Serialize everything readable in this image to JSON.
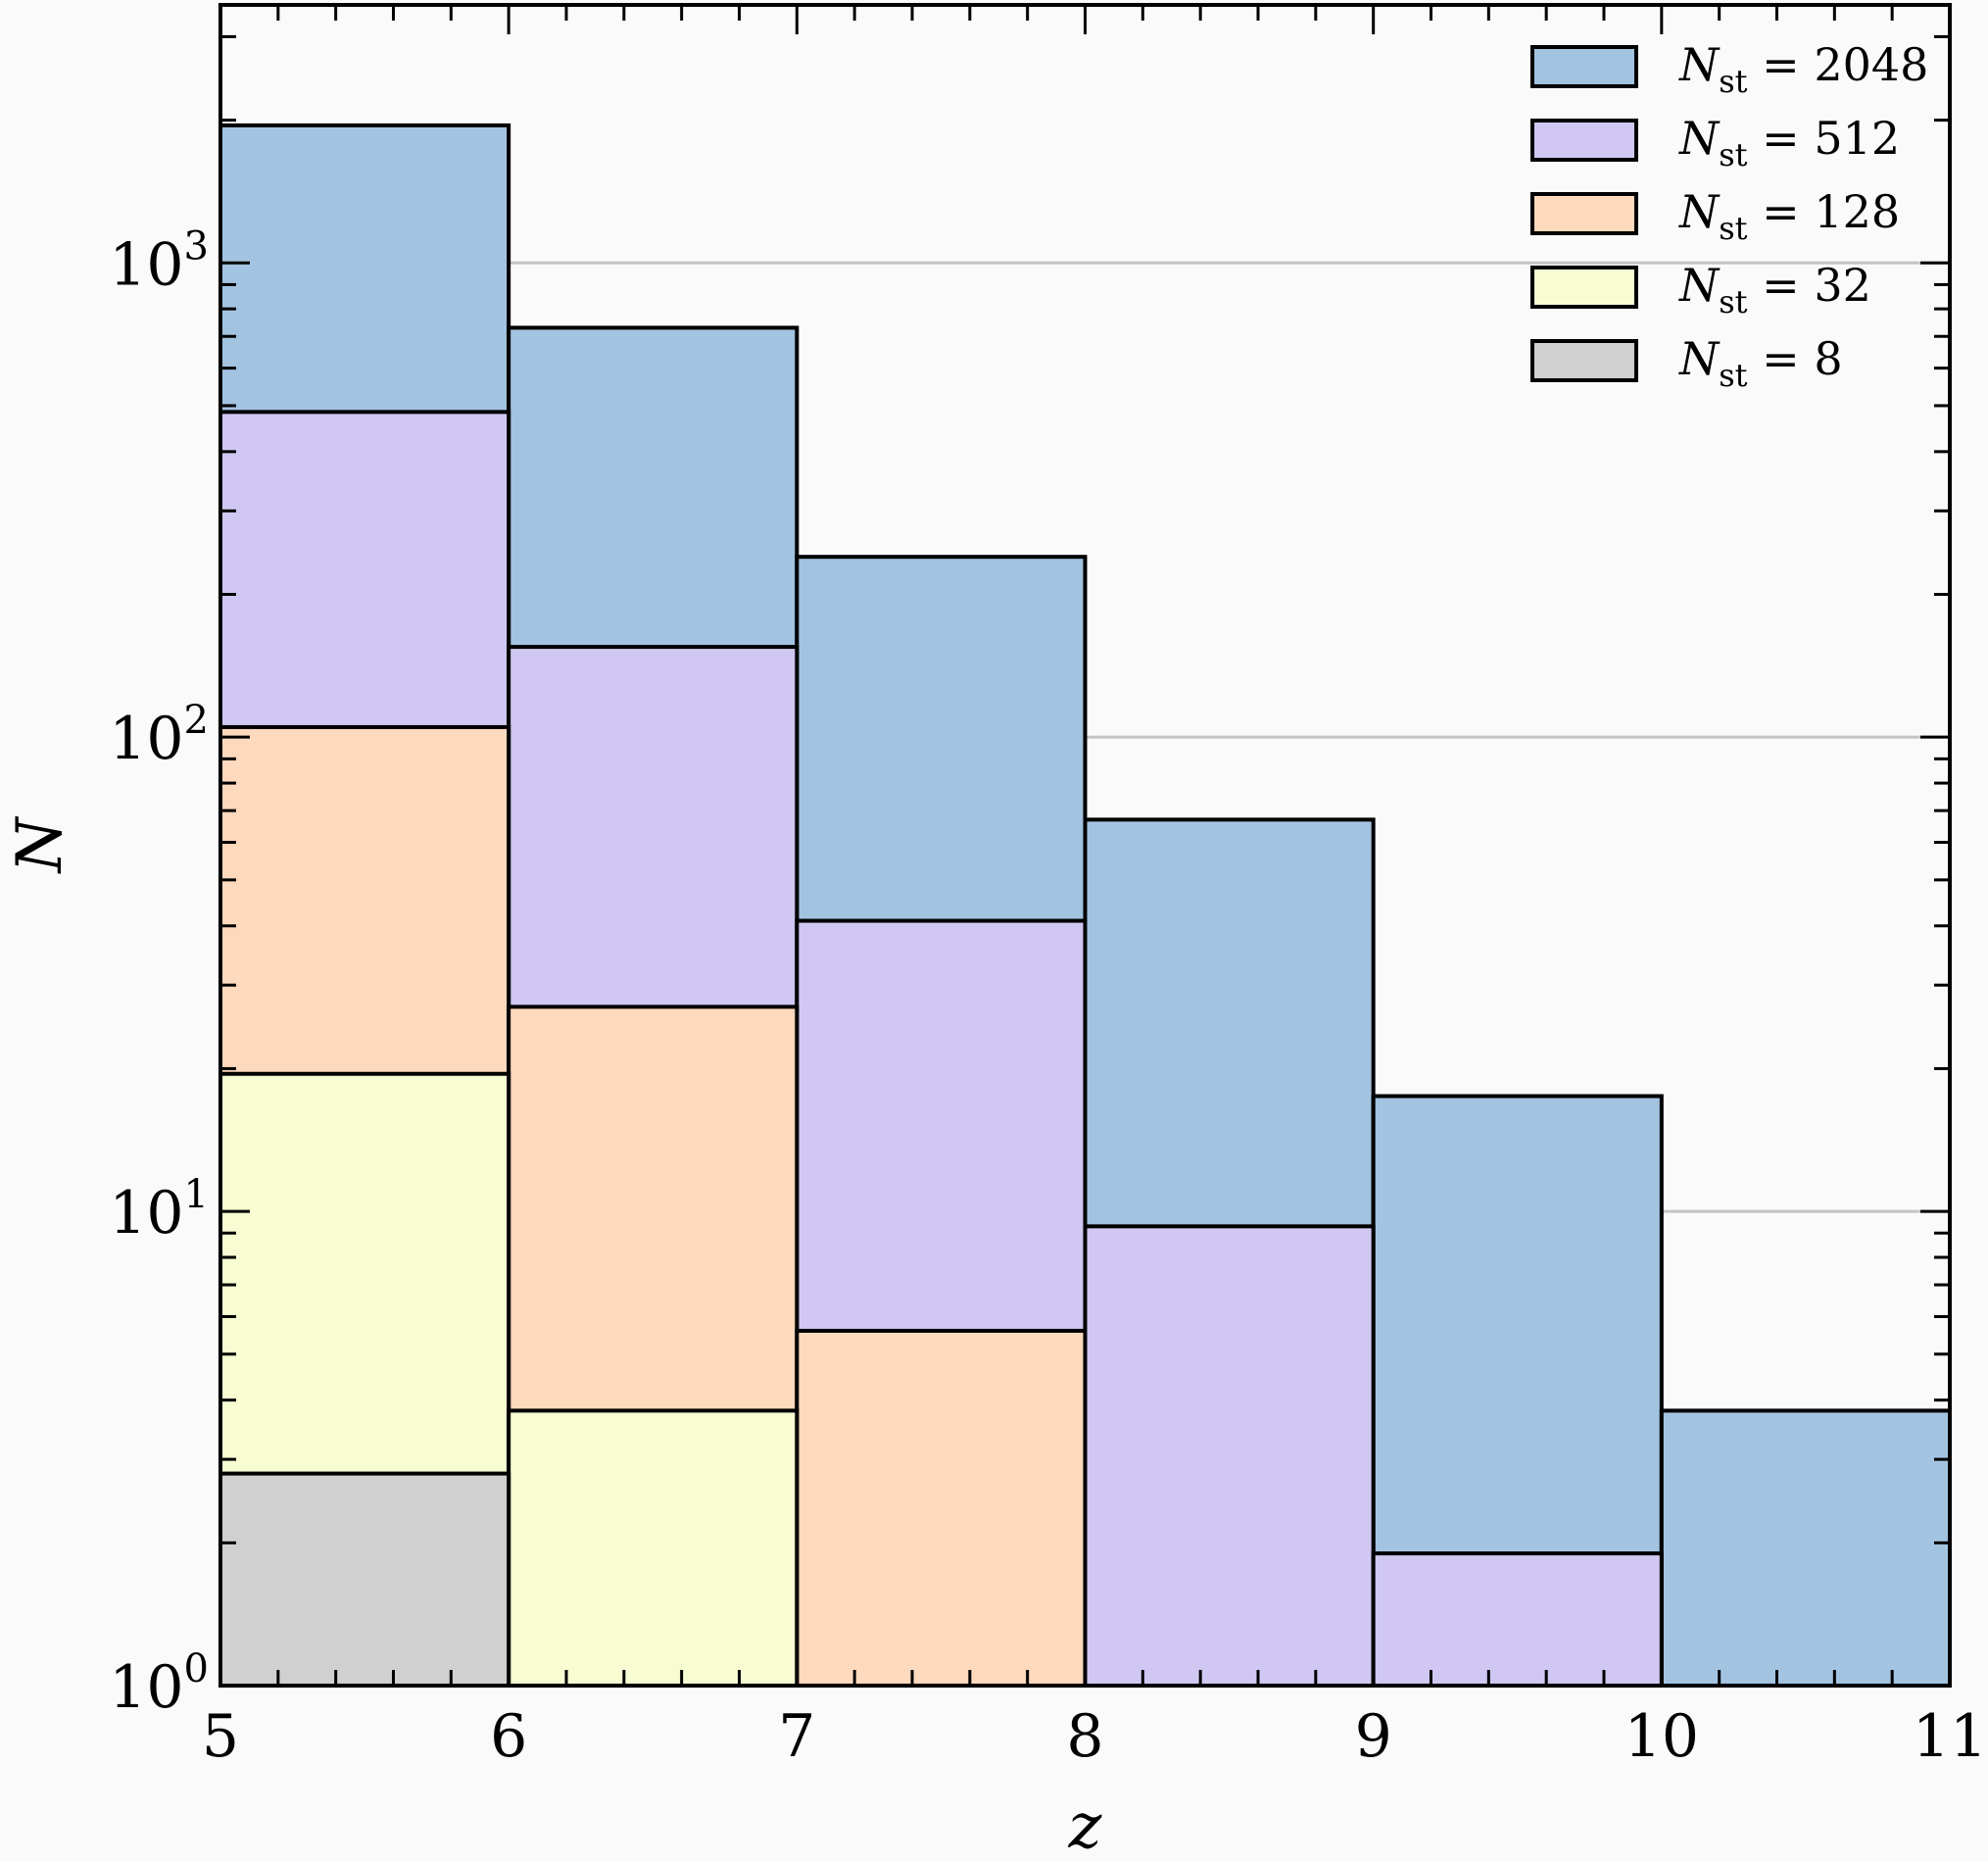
{
  "chart_data": {
    "type": "bar",
    "subtype": "stepped-histogram",
    "xlabel": "z",
    "ylabel": "N",
    "xlim": [
      5,
      11
    ],
    "ylim": [
      1,
      3500
    ],
    "yscale": "log",
    "grid": "horizontal major gridlines",
    "legend_position": "top-right",
    "bin_edges": [
      5,
      6,
      7,
      8,
      9,
      10,
      11
    ],
    "x_ticks": [
      "5",
      "6",
      "7",
      "8",
      "9",
      "10",
      "11"
    ],
    "y_ticks": [
      {
        "base": "10",
        "exp": "0",
        "value": 1
      },
      {
        "base": "10",
        "exp": "1",
        "value": 10
      },
      {
        "base": "10",
        "exp": "2",
        "value": 100
      },
      {
        "base": "10",
        "exp": "3",
        "value": 1000
      }
    ],
    "series": [
      {
        "name": "N_st = 2048",
        "legend_sym": "N",
        "legend_sub": "st",
        "legend_value": "2048",
        "color": "#a3c4e1",
        "values": [
          1950,
          730,
          240,
          67,
          17.5,
          3.8
        ]
      },
      {
        "name": "N_st = 512",
        "legend_sym": "N",
        "legend_sub": "st",
        "legend_value": "512",
        "color": "#d0c8f2",
        "values": [
          485,
          155,
          41,
          9.3,
          1.9,
          null
        ]
      },
      {
        "name": "N_st = 128",
        "legend_sym": "N",
        "legend_sub": "st",
        "legend_value": "128",
        "color": "#fdd9bd",
        "values": [
          105,
          27,
          5.6,
          null,
          null,
          null
        ]
      },
      {
        "name": "N_st = 32",
        "legend_sym": "N",
        "legend_sub": "st",
        "legend_value": "32",
        "color": "#f7fcd3",
        "values": [
          19.5,
          3.8,
          null,
          null,
          null,
          null
        ]
      },
      {
        "name": "N_st = 8",
        "legend_sym": "N",
        "legend_sub": "st",
        "legend_value": "8",
        "color": "#d0d0d0",
        "values": [
          2.8,
          null,
          null,
          null,
          null,
          null
        ]
      }
    ]
  }
}
